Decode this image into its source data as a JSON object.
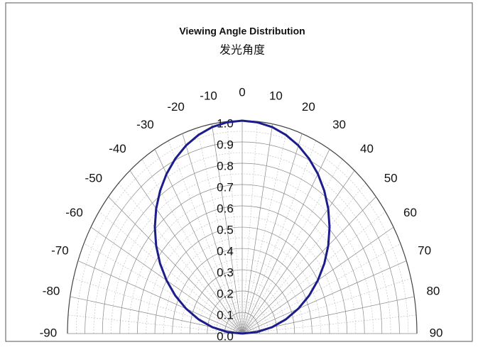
{
  "chart_data": {
    "type": "polar",
    "title": "Viewing Angle Distribution",
    "subtitle": "发光角度",
    "x": [
      -90,
      -85,
      -80,
      -75,
      -70,
      -65,
      -60,
      -55,
      -50,
      -45,
      -40,
      -35,
      -30,
      -25,
      -20,
      -15,
      -10,
      -5,
      0,
      5,
      10,
      15,
      20,
      25,
      30,
      35,
      40,
      45,
      50,
      55,
      60,
      65,
      70,
      75,
      80,
      85,
      90
    ],
    "series": [
      {
        "color": "#1c1c8c",
        "values": [
          0,
          0.087,
          0.174,
          0.259,
          0.342,
          0.423,
          0.5,
          0.574,
          0.643,
          0.707,
          0.766,
          0.819,
          0.866,
          0.906,
          0.94,
          0.966,
          0.985,
          0.996,
          1,
          0.996,
          0.985,
          0.966,
          0.94,
          0.906,
          0.866,
          0.819,
          0.766,
          0.707,
          0.643,
          0.574,
          0.5,
          0.423,
          0.342,
          0.259,
          0.174,
          0.087,
          0
        ]
      }
    ],
    "xlim": [
      -90,
      90
    ],
    "xticks": [
      -90,
      -80,
      -70,
      -60,
      -50,
      -40,
      -30,
      -20,
      -10,
      0,
      10,
      20,
      30,
      40,
      50,
      60,
      70,
      80,
      90
    ],
    "ylim": [
      0,
      1
    ],
    "yticks": [
      {
        "value": 0,
        "label": "0.0"
      },
      0.1,
      0.2,
      0.3,
      0.4,
      0.5,
      0.6,
      0.7,
      0.8,
      0.9,
      {
        "value": 1,
        "label": "1.0"
      }
    ],
    "grid": true
  }
}
